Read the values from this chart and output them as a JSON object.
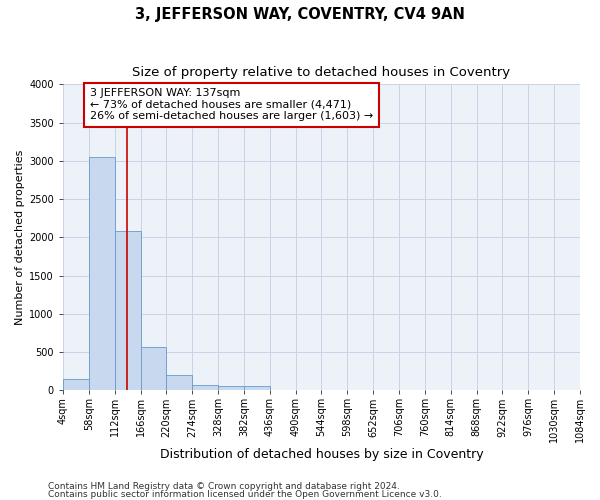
{
  "title": "3, JEFFERSON WAY, COVENTRY, CV4 9AN",
  "subtitle": "Size of property relative to detached houses in Coventry",
  "xlabel": "Distribution of detached houses by size in Coventry",
  "ylabel": "Number of detached properties",
  "footnote1": "Contains HM Land Registry data © Crown copyright and database right 2024.",
  "footnote2": "Contains public sector information licensed under the Open Government Licence v3.0.",
  "bar_color": "#c8d8ee",
  "bar_edgecolor": "#6699cc",
  "vline_color": "#cc0000",
  "vline_x": 137,
  "annotation_text": "3 JEFFERSON WAY: 137sqm\n← 73% of detached houses are smaller (4,471)\n26% of semi-detached houses are larger (1,603) →",
  "annotation_box_facecolor": "#ffffff",
  "annotation_box_edgecolor": "#cc0000",
  "bin_edges": [
    4,
    58,
    112,
    166,
    220,
    274,
    328,
    382,
    436,
    490,
    544,
    598,
    652,
    706,
    760,
    814,
    868,
    922,
    976,
    1030,
    1084
  ],
  "bin_heights": [
    150,
    3050,
    2080,
    560,
    205,
    75,
    55,
    55,
    0,
    0,
    0,
    0,
    0,
    0,
    0,
    0,
    0,
    0,
    0,
    0
  ],
  "ylim": [
    0,
    4000
  ],
  "yticks": [
    0,
    500,
    1000,
    1500,
    2000,
    2500,
    3000,
    3500,
    4000
  ],
  "grid_color": "#c8d4e8",
  "bg_color": "#edf2f9",
  "fig_bg_color": "#ffffff",
  "title_fontsize": 10.5,
  "subtitle_fontsize": 9.5,
  "xlabel_fontsize": 9,
  "ylabel_fontsize": 8,
  "tick_fontsize": 7,
  "annot_fontsize": 8,
  "footnote_fontsize": 6.5
}
